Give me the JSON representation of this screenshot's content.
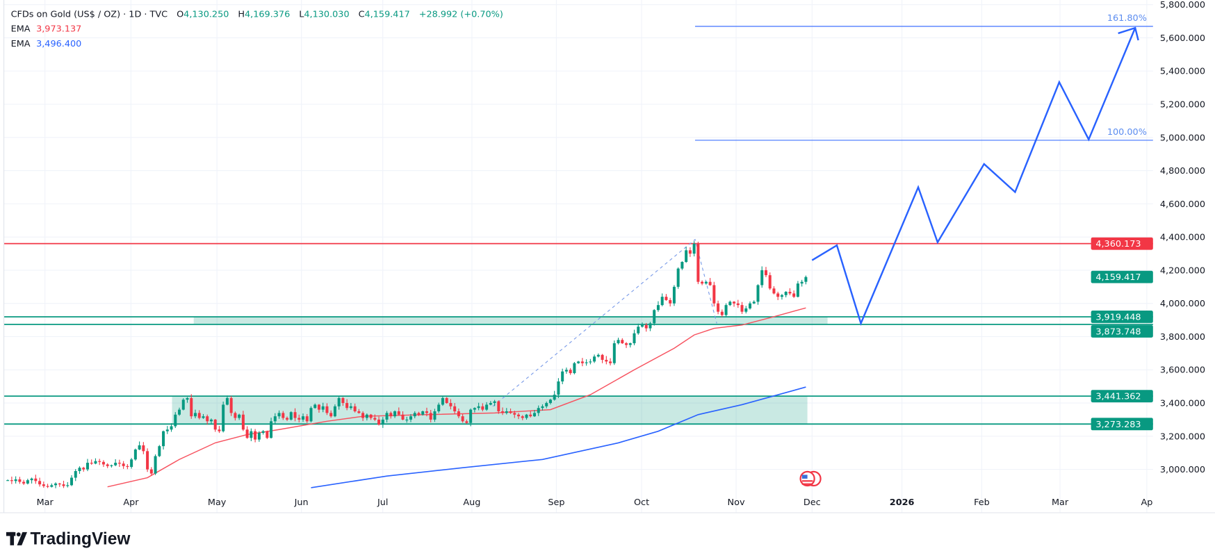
{
  "header": {
    "symbol": "CFDs on Gold (US$ / OZ) · 1D · TVC",
    "o_label": "O",
    "o_value": "4,130.250",
    "h_label": "H",
    "h_value": "4,169.376",
    "l_label": "L",
    "l_value": "4,130.030",
    "c_label": "C",
    "c_value": "4,159.417",
    "change": "+28.992 (+0.70%)",
    "ema1_label": "EMA",
    "ema1_value": "3,973.137",
    "ema2_label": "EMA",
    "ema2_value": "3,496.400"
  },
  "branding": {
    "logo_text": "TradingView"
  },
  "colors": {
    "up": "#089981",
    "down": "#f23645",
    "ema_fast": "#f7525f",
    "ema_slow": "#2962ff",
    "projection": "#2962ff",
    "zone": "#089981",
    "resistance": "#f23645"
  },
  "chart_data": {
    "type": "candlestick",
    "title": "CFDs on Gold (US$ / OZ) · 1D · TVC",
    "y_axis": {
      "range": [
        2860,
        5820
      ],
      "scale": "linear",
      "position": "right",
      "ticks": [
        "5,800.000",
        "5,600.000",
        "5,400.000",
        "5,200.000",
        "5,000.000",
        "4,800.000",
        "4,600.000",
        "4,400.000",
        "4,200.000",
        "4,000.000",
        "3,800.000",
        "3,600.000",
        "3,400.000",
        "3,200.000",
        "3,000.000"
      ],
      "tick_values": [
        5800,
        5600,
        5400,
        5200,
        5000,
        4800,
        4600,
        4400,
        4200,
        4000,
        3800,
        3600,
        3400,
        3200,
        3000
      ]
    },
    "x_axis": {
      "ticks": [
        "Mar",
        "Apr",
        "May",
        "Jun",
        "Jul",
        "Aug",
        "Sep",
        "Oct",
        "Nov",
        "Dec",
        "2026",
        "Feb",
        "Mar",
        "Ap"
      ],
      "tick_dates": [
        "2025-03-01",
        "2025-04-01",
        "2025-05-01",
        "2025-06-01",
        "2025-07-01",
        "2025-08-01",
        "2025-09-01",
        "2025-10-01",
        "2025-11-01",
        "2025-12-01",
        "2026-01-01",
        "2026-02-01",
        "2026-03-01",
        "2026-04-01"
      ]
    },
    "grid": true,
    "closes": [
      2935,
      2930,
      2940,
      2925,
      2915,
      2935,
      2945,
      2930,
      2910,
      2900,
      2895,
      2905,
      2915,
      2910,
      2900,
      2905,
      2950,
      2990,
      3010,
      3000,
      3040,
      3035,
      3050,
      3045,
      3030,
      3020,
      3025,
      3040,
      3035,
      3020,
      3015,
      3060,
      3120,
      3145,
      3110,
      3000,
      2975,
      3080,
      3140,
      3230,
      3240,
      3260,
      3330,
      3360,
      3420,
      3430,
      3320,
      3340,
      3310,
      3320,
      3290,
      3300,
      3240,
      3230,
      3390,
      3430,
      3340,
      3310,
      3330,
      3240,
      3190,
      3230,
      3180,
      3220,
      3230,
      3190,
      3290,
      3320,
      3340,
      3310,
      3300,
      3345,
      3310,
      3300,
      3320,
      3290,
      3370,
      3390,
      3360,
      3380,
      3340,
      3320,
      3380,
      3430,
      3400,
      3370,
      3380,
      3350,
      3340,
      3310,
      3330,
      3310,
      3300,
      3270,
      3300,
      3340,
      3320,
      3350,
      3330,
      3300,
      3300,
      3320,
      3340,
      3330,
      3350,
      3340,
      3300,
      3350,
      3390,
      3430,
      3400,
      3380,
      3350,
      3320,
      3290,
      3280,
      3360,
      3370,
      3380,
      3360,
      3390,
      3400,
      3410,
      3350,
      3340,
      3350,
      3340,
      3330,
      3320,
      3310,
      3330,
      3320,
      3340,
      3370,
      3380,
      3400,
      3420,
      3450,
      3530,
      3590,
      3600,
      3580,
      3640,
      3650,
      3640,
      3645,
      3650,
      3680,
      3690,
      3660,
      3650,
      3640,
      3760,
      3780,
      3760,
      3750,
      3760,
      3820,
      3860,
      3870,
      3850,
      3880,
      3960,
      3990,
      4040,
      4020,
      4000,
      4100,
      4210,
      4250,
      4320,
      4300,
      4360,
      4130,
      4120,
      4130,
      4110,
      4000,
      3950,
      3930,
      3990,
      4010,
      4000,
      3990,
      3950,
      3970,
      4000,
      4010,
      4110,
      4200,
      4170,
      4090,
      4060,
      4040,
      4050,
      4070,
      4060,
      4040,
      4120,
      4130,
      4159
    ],
    "ema_fast": {
      "label": "EMA",
      "last": 3973.137,
      "points": [
        [
          25,
          2895
        ],
        [
          35,
          2950
        ],
        [
          43,
          3060
        ],
        [
          52,
          3160
        ],
        [
          60,
          3210
        ],
        [
          68,
          3240
        ],
        [
          80,
          3290
        ],
        [
          89,
          3320
        ],
        [
          105,
          3330
        ],
        [
          122,
          3340
        ],
        [
          136,
          3360
        ],
        [
          146,
          3450
        ],
        [
          157,
          3600
        ],
        [
          167,
          3730
        ],
        [
          172,
          3810
        ],
        [
          177,
          3850
        ],
        [
          184,
          3870
        ],
        [
          192,
          3920
        ],
        [
          200,
          3973
        ]
      ]
    },
    "ema_slow": {
      "label": "EMA",
      "last": 3496.4,
      "points": [
        [
          76,
          2890
        ],
        [
          95,
          2960
        ],
        [
          114,
          3010
        ],
        [
          134,
          3060
        ],
        [
          153,
          3160
        ],
        [
          163,
          3230
        ],
        [
          173,
          3330
        ],
        [
          184,
          3390
        ],
        [
          200,
          3496
        ]
      ]
    },
    "horizontal_levels": [
      {
        "value": 4360.173,
        "label": "4,360.173",
        "kind": "resistance"
      },
      {
        "value": 3919.448,
        "label": "3,919.448",
        "kind": "zone"
      },
      {
        "value": 3873.748,
        "label": "3,873.748",
        "kind": "zone"
      },
      {
        "value": 3441.362,
        "label": "3,441.362",
        "kind": "zone"
      },
      {
        "value": 3273.283,
        "label": "3,273.283",
        "kind": "zone"
      }
    ],
    "last_price": {
      "value": 4159.417,
      "label": "4,159.417"
    },
    "fib_levels": [
      {
        "label": "161.80%",
        "value": 5669
      },
      {
        "label": "100.00%",
        "value": 4983
      }
    ],
    "projection_path": [
      4260,
      4350,
      3880,
      4700,
      4368,
      4840,
      4671,
      5333,
      4988,
      5660
    ]
  }
}
